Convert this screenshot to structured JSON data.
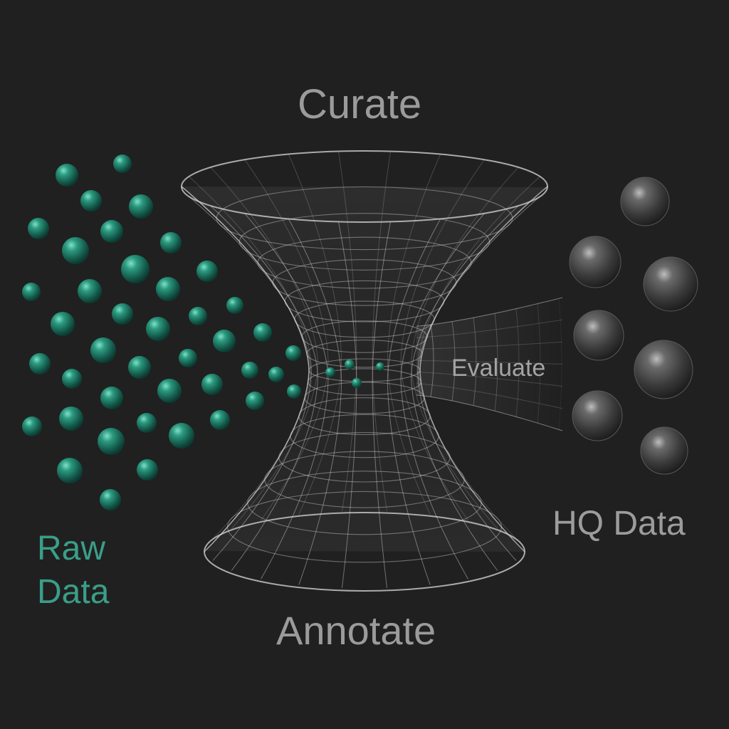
{
  "labels": {
    "curate": "Curate",
    "evaluate": "Evaluate",
    "annotate": "Annotate",
    "hq_data": "HQ Data",
    "raw_data_line1": "Raw",
    "raw_data_line2": "Data"
  },
  "colors": {
    "background": "#202020",
    "raw_sphere": "#1f7a66",
    "hq_sphere": "#4a4a4a",
    "mesh": "#d8d8d8",
    "raw_text": "#3a9e88",
    "label_text": "#9b9b9b"
  }
}
